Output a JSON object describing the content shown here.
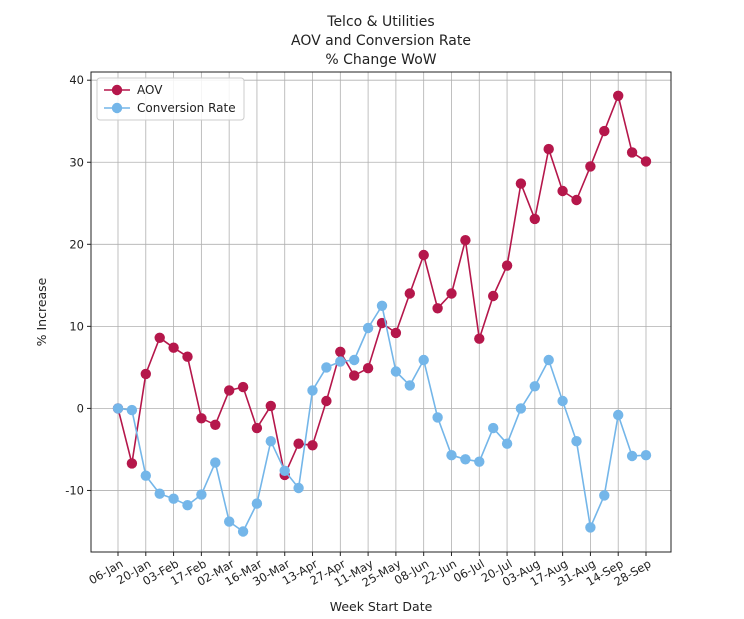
{
  "chart_data": {
    "type": "line",
    "title": [
      "Telco & Utilities",
      "AOV and Conversion Rate",
      "% Change WoW"
    ],
    "xlabel": "Week Start Date",
    "ylabel": "% Increase",
    "ylim": [
      -17.5,
      41
    ],
    "yticks": [
      -10,
      0,
      10,
      20,
      30,
      40
    ],
    "grid": true,
    "legend_position": "top-left",
    "x_tick_labels": [
      "06-Jan",
      "20-Jan",
      "03-Feb",
      "17-Feb",
      "02-Mar",
      "16-Mar",
      "30-Mar",
      "13-Apr",
      "27-Apr",
      "11-May",
      "25-May",
      "08-Jun",
      "22-Jun",
      "06-Jul",
      "20-Jul",
      "03-Aug",
      "17-Aug",
      "31-Aug",
      "14-Sep",
      "28-Sep"
    ],
    "x": [
      "06-Jan",
      "13-Jan",
      "20-Jan",
      "27-Jan",
      "03-Feb",
      "10-Feb",
      "17-Feb",
      "24-Feb",
      "02-Mar",
      "09-Mar",
      "16-Mar",
      "23-Mar",
      "30-Mar",
      "06-Apr",
      "13-Apr",
      "20-Apr",
      "27-Apr",
      "04-May",
      "11-May",
      "18-May",
      "25-May",
      "01-Jun",
      "08-Jun",
      "15-Jun",
      "22-Jun",
      "29-Jun",
      "06-Jul",
      "13-Jul",
      "20-Jul",
      "27-Jul",
      "03-Aug",
      "10-Aug",
      "17-Aug",
      "24-Aug",
      "31-Aug",
      "07-Sep",
      "14-Sep",
      "21-Sep",
      "28-Sep"
    ],
    "series": [
      {
        "name": "AOV",
        "color": "#b5174b",
        "values": [
          0,
          -6.7,
          4.2,
          8.6,
          7.4,
          6.3,
          -1.2,
          -2.0,
          2.2,
          2.6,
          -2.4,
          0.3,
          -8.1,
          -4.3,
          -4.5,
          0.9,
          6.9,
          4.0,
          4.9,
          10.4,
          9.2,
          14.0,
          18.7,
          12.2,
          14.0,
          20.5,
          8.5,
          13.7,
          17.4,
          27.4,
          23.1,
          31.6,
          26.5,
          25.4,
          29.5,
          33.8,
          38.1,
          31.2,
          30.1
        ]
      },
      {
        "name": "Conversion Rate",
        "color": "#74b6e9",
        "values": [
          0,
          -0.2,
          -8.2,
          -10.4,
          -11.0,
          -11.8,
          -10.5,
          -6.6,
          -13.8,
          -15.0,
          -11.6,
          -4.0,
          -7.6,
          -9.7,
          2.2,
          5.0,
          5.7,
          5.9,
          9.8,
          12.5,
          4.5,
          2.8,
          5.9,
          -1.1,
          -5.7,
          -6.2,
          -6.5,
          -2.4,
          -4.3,
          0.0,
          2.7,
          5.9,
          0.9,
          -4.0,
          -14.5,
          -10.6,
          -0.8,
          -5.8,
          -5.7
        ]
      }
    ]
  }
}
